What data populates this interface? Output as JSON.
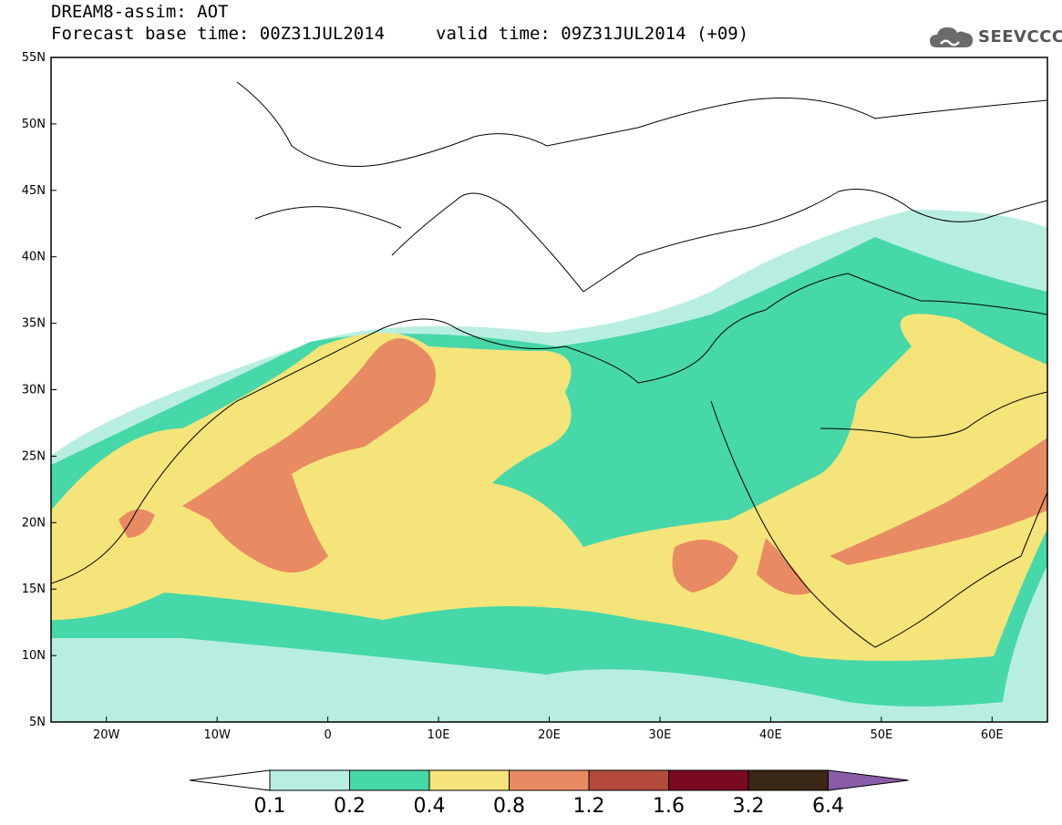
{
  "header": {
    "title_line1": "DREAM8-assim: AOT",
    "title_line2": "Forecast base time: 00Z31JUL2014",
    "valid_time": "valid time: 09Z31JUL2014 (+09)",
    "logo_text": "SEEVCCC"
  },
  "map": {
    "lat_labels": [
      "55N",
      "50N",
      "45N",
      "40N",
      "35N",
      "30N",
      "25N",
      "20N",
      "15N",
      "10N",
      "5N"
    ],
    "lon_labels": [
      "20W",
      "10W",
      "0",
      "10E",
      "20E",
      "30E",
      "40E",
      "50E",
      "60E"
    ],
    "lat_range": [
      5,
      55
    ],
    "lon_range": [
      -25,
      65
    ]
  },
  "colorbar": {
    "ticks": [
      "0.1",
      "0.2",
      "0.4",
      "0.8",
      "1.2",
      "1.6",
      "3.2",
      "6.4"
    ],
    "colors": [
      "#b8eee0",
      "#46d8a8",
      "#f5e47a",
      "#e98b62",
      "#b34a3c",
      "#7a0a22",
      "#3a2716",
      "#8a5ca8"
    ]
  }
}
